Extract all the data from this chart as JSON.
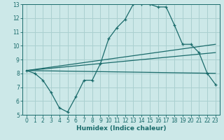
{
  "xlabel": "Humidex (Indice chaleur)",
  "ylabel": "",
  "bg_color": "#cce8e8",
  "grid_color": "#aad0d0",
  "line_color": "#1a6b6b",
  "xlim": [
    -0.5,
    23.5
  ],
  "ylim": [
    5,
    13
  ],
  "xticks": [
    0,
    1,
    2,
    3,
    4,
    5,
    6,
    7,
    8,
    9,
    10,
    11,
    12,
    13,
    14,
    15,
    16,
    17,
    18,
    19,
    20,
    21,
    22,
    23
  ],
  "yticks": [
    5,
    6,
    7,
    8,
    9,
    10,
    11,
    12,
    13
  ],
  "line1_x": [
    0,
    1,
    2,
    3,
    4,
    5,
    6,
    7,
    8,
    9,
    10,
    11,
    12,
    13,
    14,
    15,
    16,
    17,
    18,
    19,
    20,
    21,
    22,
    23
  ],
  "line1_y": [
    8.2,
    8.0,
    7.5,
    6.6,
    5.5,
    5.2,
    6.3,
    7.5,
    7.5,
    8.7,
    10.5,
    11.3,
    11.9,
    13.0,
    13.0,
    13.0,
    12.8,
    12.8,
    11.5,
    10.1,
    10.1,
    9.5,
    8.0,
    7.2
  ],
  "line2_y_start": 8.2,
  "line2_y_end": 10.1,
  "line3_y_start": 8.2,
  "line3_y_end": 9.5,
  "line4_y_start": 8.2,
  "line4_y_end": 8.0
}
